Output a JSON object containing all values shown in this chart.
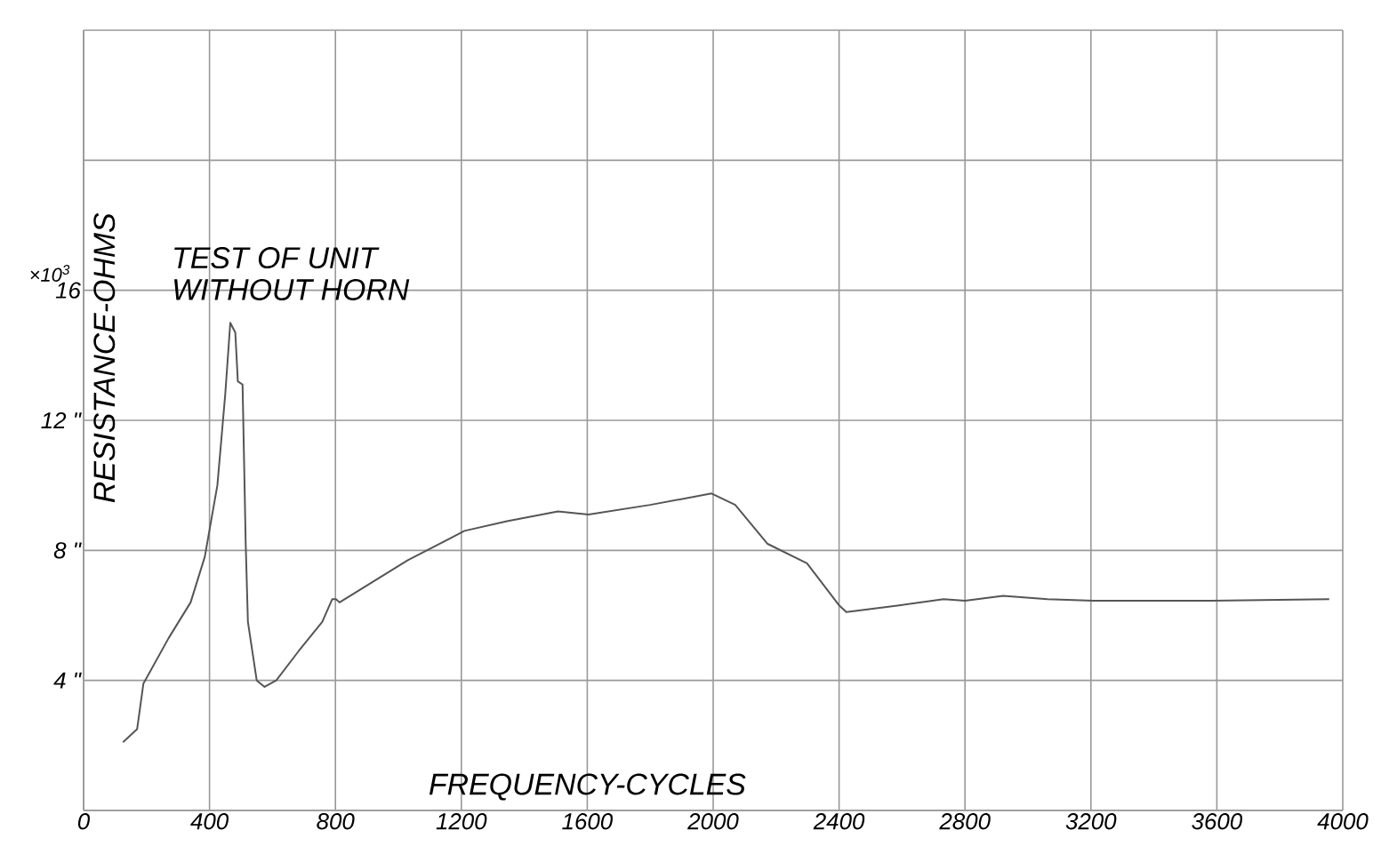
{
  "chart_data": {
    "type": "line",
    "xlabel": "FREQUENCY-CYCLES",
    "ylabel": "RESISTANCE-OHMS",
    "annotations": [
      "TEST OF UNIT",
      "WITHOUT HORN",
      "×10$^{3}$"
    ],
    "xlim": [
      0,
      4000
    ],
    "ylim": [
      0,
      24
    ],
    "xticks": [
      0,
      400,
      800,
      1200,
      1600,
      2000,
      2400,
      2800,
      3200,
      3600,
      4000
    ],
    "yticks": [
      {
        "value": 0,
        "label": null
      },
      {
        "value": 4,
        "label": "4 \""
      },
      {
        "value": 8,
        "label": "8 \""
      },
      {
        "value": 12,
        "label": "12 \""
      },
      16,
      {
        "value": 20,
        "label": null
      },
      {
        "value": 24,
        "label": null
      }
    ],
    "grid": true,
    "marker": "none",
    "line_style": "solid",
    "series": [
      {
        "color": "#555555",
        "x": [
          125,
          170,
          190,
          270,
          340,
          385,
          425,
          450,
          466,
          482,
          490,
          505,
          515,
          522,
          550,
          575,
          612,
          683,
          758,
          790,
          802,
          813,
          1030,
          1210,
          1345,
          1507,
          1604,
          1800,
          1995,
          2070,
          2173,
          2298,
          2401,
          2423,
          2585,
          2732,
          2800,
          2921,
          3062,
          3209,
          3582,
          3957
        ],
        "values": [
          2.1,
          2.5,
          3.9,
          5.3,
          6.4,
          7.8,
          10,
          12.8,
          15.0,
          14.7,
          13.2,
          13.1,
          8.2,
          5.8,
          4.0,
          3.8,
          4.0,
          4.9,
          5.8,
          6.5,
          6.5,
          6.4,
          7.7,
          8.6,
          8.9,
          9.2,
          9.1,
          9.4,
          9.75,
          9.4,
          8.2,
          7.6,
          6.3,
          6.1,
          6.3,
          6.5,
          6.45,
          6.6,
          6.5,
          6.45,
          6.45,
          6.5
        ]
      }
    ]
  }
}
